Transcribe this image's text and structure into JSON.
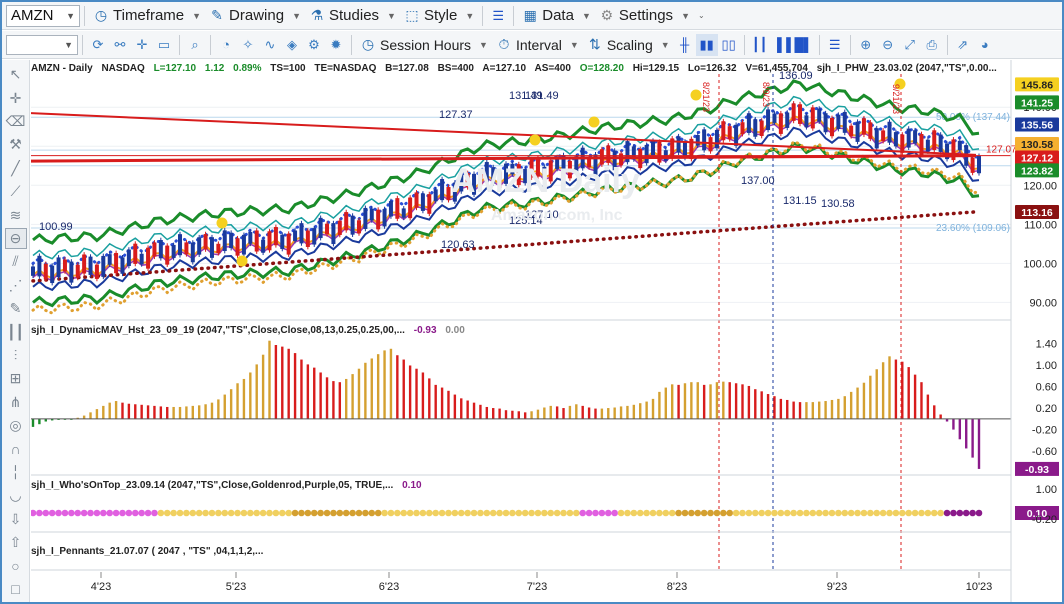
{
  "toolbar": {
    "symbol": "AMZN",
    "timeframe": "Timeframe",
    "drawing": "Drawing",
    "studies": "Studies",
    "style": "Style",
    "data": "Data",
    "settings": "Settings",
    "session_hours": "Session Hours",
    "interval": "Interval",
    "scaling": "Scaling"
  },
  "status": {
    "symbol": "AMZN - Daily",
    "exchange": "NASDAQ",
    "last": "L=127.10",
    "change": "1.12",
    "change_pct": "0.89%",
    "ts": "TS=100",
    "te": "TE=NASDAQ",
    "bid": "B=127.08",
    "bid_size": "BS=400",
    "ask": "A=127.10",
    "ask_size": "AS=400",
    "open": "O=128.20",
    "high": "Hi=129.15",
    "low": "Lo=126.32",
    "volume": "V=61,455,704",
    "study1": "sjh_I_PHW_23.03.02 (2047,\"TS\",0.00..."
  },
  "chart_data": [
    {
      "type": "line",
      "title": "AMZN - Daily",
      "x_ticks": [
        "4'23",
        "5'23",
        "6'23",
        "7'23",
        "8'23",
        "9'23",
        "10'23"
      ],
      "y_ticks": [
        90.0,
        100.0,
        110.0,
        120.0,
        130.0,
        140.0
      ],
      "ylim": [
        86,
        148
      ],
      "price_badges": [
        {
          "label": "145.86",
          "color": "#f5d020"
        },
        {
          "label": "141.25",
          "color": "#1a8c2a"
        },
        {
          "label": "135.56",
          "color": "#1a3a9c"
        },
        {
          "label": "130.58",
          "color": "#f5b030"
        },
        {
          "label": "127.12",
          "color": "#d81c1c"
        },
        {
          "label": "123.82",
          "color": "#1a8c2a"
        },
        {
          "label": "113.16",
          "color": "#8a1010"
        }
      ],
      "extra_labels": [
        "127.07",
        "50.00% (137.44)",
        "23.60% (109.06)"
      ],
      "annotations": [
        "127.37",
        "131.49",
        "131.49",
        "100.99",
        "120.63",
        "127.10",
        "125.14",
        "137.00",
        "131.15",
        "130.58",
        "136.09",
        "8/21/23",
        "8/9/23",
        "9/21/23"
      ],
      "watermark": "AMZN Daily",
      "watermark_sub": "Amazon.com, Inc"
    },
    {
      "type": "bar",
      "title": "sjh_I_DynamicMAV_Hst_23_09_19 (2047,\"TS\",Close,Close,08,13,0.25,0.25,00,...",
      "current": "-0.93",
      "current2": "0.00",
      "y_ticks": [
        "1.40",
        "1.00",
        "0.60",
        "0.20",
        "-0.20",
        "-0.60",
        "-0.93"
      ],
      "ylim": [
        -0.95,
        1.5
      ],
      "values": [
        -0.15,
        -0.1,
        -0.05,
        -0.03,
        -0.02,
        -0.01,
        -0.01,
        0.02,
        0.06,
        0.12,
        0.18,
        0.24,
        0.3,
        0.33,
        0.3,
        0.28,
        0.27,
        0.26,
        0.25,
        0.24,
        0.23,
        0.22,
        0.22,
        0.22,
        0.23,
        0.24,
        0.25,
        0.27,
        0.3,
        0.36,
        0.45,
        0.55,
        0.66,
        0.74,
        0.86,
        1.01,
        1.19,
        1.45,
        1.37,
        1.34,
        1.3,
        1.22,
        1.1,
        1.01,
        0.95,
        0.86,
        0.77,
        0.7,
        0.68,
        0.74,
        0.83,
        0.93,
        1.04,
        1.12,
        1.2,
        1.27,
        1.3,
        1.18,
        1.1,
        0.99,
        0.93,
        0.86,
        0.75,
        0.63,
        0.58,
        0.52,
        0.45,
        0.38,
        0.34,
        0.3,
        0.26,
        0.22,
        0.2,
        0.19,
        0.16,
        0.15,
        0.14,
        0.12,
        0.14,
        0.17,
        0.21,
        0.24,
        0.23,
        0.2,
        0.24,
        0.27,
        0.24,
        0.21,
        0.19,
        0.19,
        0.2,
        0.21,
        0.23,
        0.24,
        0.26,
        0.29,
        0.32,
        0.37,
        0.5,
        0.58,
        0.64,
        0.63,
        0.66,
        0.68,
        0.68,
        0.63,
        0.64,
        0.68,
        0.69,
        0.68,
        0.66,
        0.64,
        0.61,
        0.55,
        0.51,
        0.46,
        0.42,
        0.37,
        0.35,
        0.32,
        0.31,
        0.31,
        0.31,
        0.32,
        0.33,
        0.35,
        0.37,
        0.42,
        0.5,
        0.58,
        0.67,
        0.8,
        0.92,
        1.05,
        1.16,
        1.1,
        1.06,
        0.96,
        0.82,
        0.68,
        0.45,
        0.25,
        0.08,
        -0.05,
        -0.2,
        -0.38,
        -0.55,
        -0.72,
        -0.93
      ],
      "colors_by_index": "gold when rising, red when falling, green/purple below zero"
    },
    {
      "type": "scatter",
      "title": "sjh_I_Who'sOnTop_23.09.14 (2047,\"TS\",Close,Goldenrod,Purple,05,  TRUE,...",
      "current": "0.10",
      "y_ticks": [
        "1.00",
        "-0.20"
      ],
      "badge": "0.10"
    },
    {
      "type": "line",
      "title": "sjh_I_Pennants_21.07.07 (  2047 ,  \"TS\" ,04,1,1,2,..."
    }
  ]
}
